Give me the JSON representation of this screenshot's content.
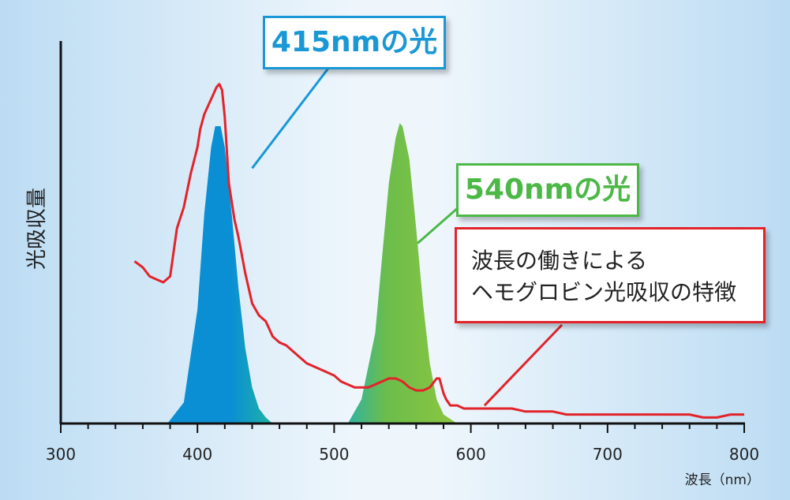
{
  "chart_data": {
    "type": "area",
    "xlim": [
      300,
      800
    ],
    "x_ticks": [
      "300",
      "400",
      "500",
      "600",
      "700",
      "800"
    ],
    "xlabel": "波長（nm）",
    "ylabel": "光吸収量",
    "series": [
      {
        "name": "415nmの光",
        "color": "#0a8fd4",
        "shape": "gaussian",
        "x": [
          378,
          390,
          400,
          405,
          410,
          413,
          417,
          420,
          425,
          430,
          435,
          440,
          445,
          450,
          455
        ],
        "y": [
          0,
          0.07,
          0.38,
          0.7,
          0.92,
          0.99,
          0.99,
          0.92,
          0.7,
          0.45,
          0.25,
          0.12,
          0.05,
          0.02,
          0
        ]
      },
      {
        "name": "540nmの光",
        "color": "#7dc242",
        "shape": "gaussian",
        "x": [
          510,
          520,
          530,
          535,
          540,
          545,
          548,
          550,
          555,
          560,
          565,
          570,
          575,
          580,
          590
        ],
        "y": [
          0,
          0.08,
          0.3,
          0.55,
          0.8,
          0.95,
          1.0,
          0.99,
          0.88,
          0.65,
          0.4,
          0.2,
          0.08,
          0.03,
          0
        ]
      },
      {
        "name": "ヘモグロビン光吸収",
        "color": "#e2232a",
        "shape": "line",
        "x": [
          354,
          360,
          365,
          370,
          375,
          380,
          385,
          390,
          395,
          400,
          402,
          405,
          408,
          410,
          412,
          414,
          416,
          418,
          420,
          423,
          427,
          430,
          435,
          440,
          445,
          450,
          455,
          460,
          465,
          470,
          475,
          480,
          490,
          500,
          505,
          510,
          515,
          520,
          525,
          530,
          535,
          540,
          545,
          550,
          555,
          560,
          565,
          570,
          575,
          577,
          580,
          582,
          585,
          590,
          595,
          600,
          610,
          620,
          630,
          640,
          650,
          660,
          670,
          680,
          700,
          720,
          740,
          760,
          770,
          780,
          790,
          800
        ],
        "y": [
          0.54,
          0.52,
          0.49,
          0.48,
          0.47,
          0.49,
          0.65,
          0.72,
          0.83,
          0.92,
          0.98,
          1.03,
          1.06,
          1.08,
          1.1,
          1.12,
          1.13,
          1.11,
          1.02,
          0.8,
          0.68,
          0.62,
          0.5,
          0.4,
          0.36,
          0.34,
          0.29,
          0.27,
          0.26,
          0.24,
          0.22,
          0.2,
          0.18,
          0.16,
          0.14,
          0.13,
          0.12,
          0.12,
          0.12,
          0.13,
          0.14,
          0.15,
          0.15,
          0.14,
          0.12,
          0.11,
          0.11,
          0.12,
          0.15,
          0.15,
          0.1,
          0.08,
          0.06,
          0.06,
          0.05,
          0.05,
          0.05,
          0.05,
          0.05,
          0.04,
          0.04,
          0.04,
          0.03,
          0.03,
          0.03,
          0.03,
          0.03,
          0.03,
          0.02,
          0.02,
          0.03,
          0.03
        ]
      }
    ],
    "ylim": [
      0,
      1.2
    ],
    "grid": false
  },
  "annotations": {
    "label_415": "415nmの光",
    "label_540": "540nmの光",
    "feature_line1": "波長の働きによる",
    "feature_line2": "ヘモグロビン光吸収の特徴"
  }
}
